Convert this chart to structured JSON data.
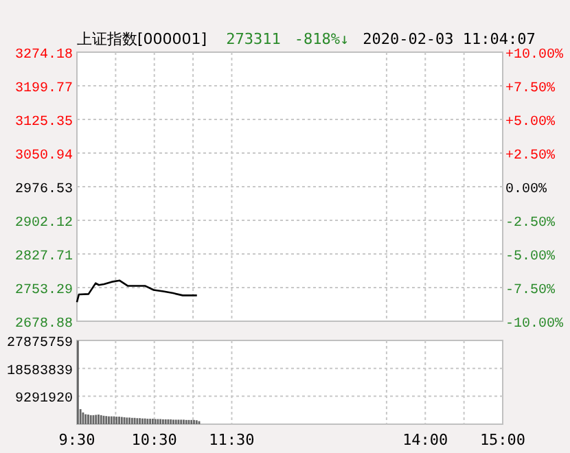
{
  "chart_data": [
    {
      "type": "line",
      "title": "上证指数[000001]",
      "annotations": [
        "273311",
        "-818%↓",
        "2020-02-03 11:04:07"
      ],
      "x": [
        9.5,
        9.525,
        9.65,
        9.7417,
        9.7833,
        9.85,
        9.95,
        10.05,
        10.1583,
        10.3833,
        10.4917,
        10.6167,
        10.7417,
        10.8667,
        11.05
      ],
      "series": [
        {
          "color": "#000000",
          "values": [
            2721,
            2738,
            2739,
            2763,
            2759,
            2761,
            2766,
            2769,
            2757,
            2757,
            2748,
            2745,
            2741,
            2736,
            2736
          ]
        }
      ],
      "xlim": [
        9.5,
        15
      ],
      "ylim": [
        2678.88,
        3274.18
      ],
      "yticks": [
        2678.88,
        2753.29,
        2827.71,
        2902.12,
        2976.53,
        3050.94,
        3125.35,
        3199.77,
        3274.18
      ],
      "y2lim": [
        -10,
        10
      ],
      "y2ticks": [
        {
          "value": -10,
          "label": "-10.00%"
        },
        {
          "value": -7.5,
          "label": "-7.50%"
        },
        {
          "value": -5,
          "label": "-5.00%"
        },
        {
          "value": -2.5,
          "label": "-2.50%"
        },
        {
          "value": 0,
          "label": "0.00%"
        },
        {
          "value": 2.5,
          "label": "+2.50%"
        },
        {
          "value": 5,
          "label": "+5.00%"
        },
        {
          "value": 7.5,
          "label": "+7.50%"
        },
        {
          "value": 10,
          "label": "+10.00%"
        }
      ],
      "grid": true,
      "tick_labels": "y"
    },
    {
      "type": "bar",
      "x": [
        9.5,
        9.5333,
        9.5667,
        9.6,
        9.6333,
        9.6667,
        9.7,
        9.7333,
        9.7667,
        9.8,
        9.8333,
        9.8667,
        9.9,
        9.9333,
        9.9667,
        10,
        10.0333,
        10.0667,
        10.1,
        10.1333,
        10.1667,
        10.2,
        10.2333,
        10.2667,
        10.3,
        10.3333,
        10.3667,
        10.4,
        10.4333,
        10.4667,
        10.5,
        10.5333,
        10.5667,
        10.6,
        10.6333,
        10.6667,
        10.7,
        10.7333,
        10.7667,
        10.8,
        10.8333,
        10.8667,
        10.9,
        10.9333,
        10.9667,
        11,
        11.0333,
        11.0667
      ],
      "series": [
        {
          "color": "#666666",
          "values": [
            27800000,
            5000000,
            3900000,
            3300000,
            3200000,
            3000000,
            3000000,
            3100000,
            3200000,
            3000000,
            2800000,
            2700000,
            2600000,
            2600000,
            2600000,
            2500000,
            2500000,
            2400000,
            2300000,
            2200000,
            2200000,
            2100000,
            2100000,
            2000000,
            2000000,
            1900000,
            1900000,
            1800000,
            1800000,
            1800000,
            1700000,
            1700000,
            1700000,
            1600000,
            1600000,
            1600000,
            1600000,
            1500000,
            1500000,
            1500000,
            1500000,
            1500000,
            1400000,
            1400000,
            1400000,
            1400000,
            1300000,
            1000000
          ]
        }
      ],
      "xlim": [
        9.5,
        15
      ],
      "xticks": [
        {
          "value": 9.5,
          "label": "9:30"
        },
        {
          "value": 10,
          "label": null
        },
        {
          "value": 10.5,
          "label": "10:30"
        },
        {
          "value": 11,
          "label": null
        },
        {
          "value": 11.5,
          "label": "11:30"
        },
        {
          "value": 13.5,
          "label": null
        },
        {
          "value": 14,
          "label": "14:00"
        },
        {
          "value": 14.5,
          "label": null
        },
        {
          "value": 15,
          "label": "15:00"
        }
      ],
      "ylim": [
        0,
        27875759
      ],
      "yticks": [
        {
          "value": 0,
          "label": null
        },
        9291920,
        18583839,
        27875759
      ],
      "grid": true
    }
  ]
}
